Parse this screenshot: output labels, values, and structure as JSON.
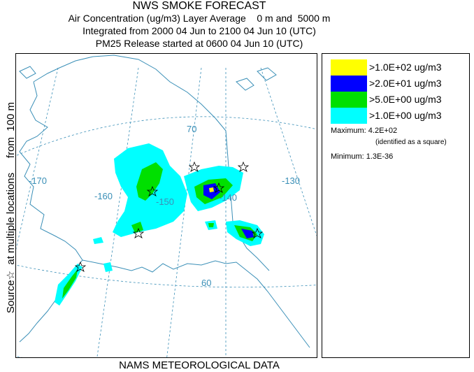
{
  "title": {
    "line1": "NWS SMOKE FORECAST",
    "line2": "Air Concentration (ug/m3) Layer Average    0 m and  5000 m",
    "line3": "Integrated from 2000 04 Jun to 2100 04 Jun 10 (UTC)",
    "line4": "PM25 Release started at 0600 04 Jun 10 (UTC)"
  },
  "side_label": "Source☆  at multiple locations     from  100 m",
  "footer": "NAMS METEOROLOGICAL DATA",
  "map": {
    "grid_labels": {
      "lat_70": "70",
      "lat_60": "60",
      "lon_m170": "-170",
      "lon_m160": "-160",
      "lon_m150": "-150",
      "lon_m140": "-140",
      "lon_m130": "-130"
    },
    "colors": {
      "coast": "#3a8fb7",
      "level1": "#00ffff",
      "level2": "#00e000",
      "level3": "#0000ff",
      "level4": "#ffff00"
    }
  },
  "legend": {
    "items": [
      {
        "label": ">1.0E+02 ug/m3",
        "color": "#ffff00"
      },
      {
        "label": ">2.0E+01 ug/m3",
        "color": "#0000ff"
      },
      {
        "label": ">5.0E+00 ug/m3",
        "color": "#00e000"
      },
      {
        "label": ">1.0E+00 ug/m3",
        "color": "#00ffff"
      }
    ],
    "maximum": "Maximum: 4.2E+02",
    "maximum_note": "(identified as a square)",
    "minimum": "Minimum: 1.3E-36"
  }
}
